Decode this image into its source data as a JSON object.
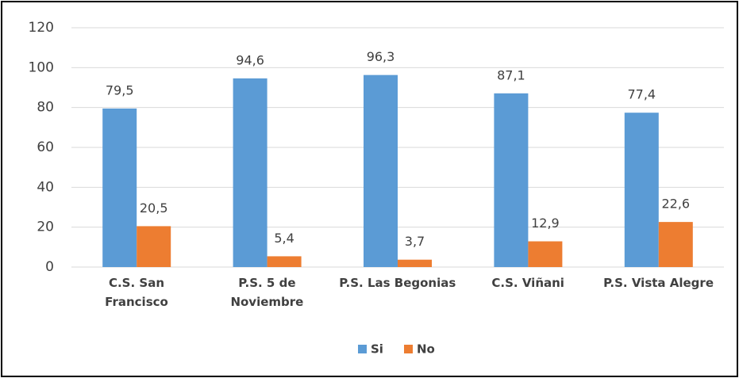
{
  "chart_data": {
    "type": "bar",
    "categories": [
      "C.S. San\nFrancisco",
      "P.S. 5 de\nNoviembre",
      "P.S. Las Begonias",
      "C.S. Viñani",
      "P.S. Vista Alegre"
    ],
    "series": [
      {
        "name": "Si",
        "color": "#5b9bd5",
        "values": [
          79.5,
          94.6,
          96.3,
          87.1,
          77.4
        ],
        "value_labels": [
          "79,5",
          "94,6",
          "96,3",
          "87,1",
          "77,4"
        ]
      },
      {
        "name": "No",
        "color": "#ed7d31",
        "values": [
          20.5,
          5.4,
          3.7,
          12.9,
          22.6
        ],
        "value_labels": [
          "20,5",
          "5,4",
          "3,7",
          "12,9",
          "22,6"
        ]
      }
    ],
    "ylim": [
      0,
      120
    ],
    "yticks": [
      0,
      20,
      40,
      60,
      80,
      100,
      120
    ],
    "grid": true,
    "legend": "bottom"
  }
}
